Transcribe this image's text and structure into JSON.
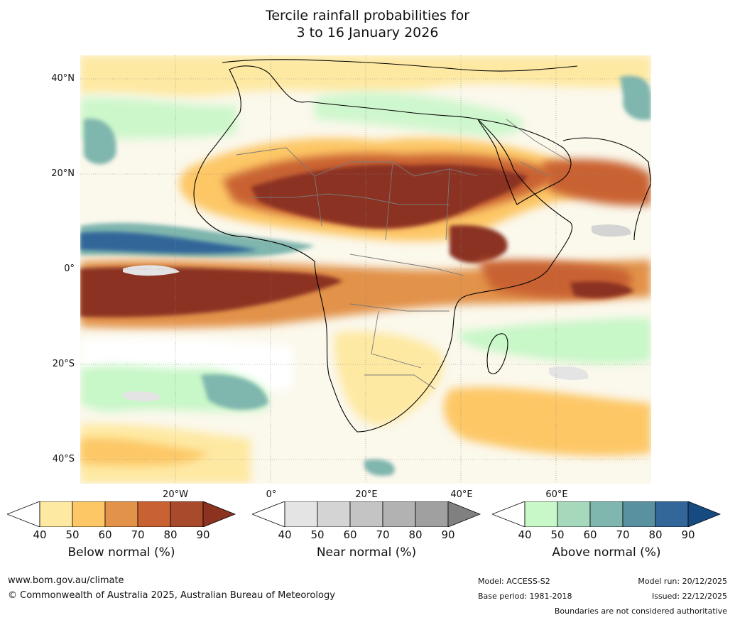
{
  "title": {
    "line1": "Tercile rainfall probabilities for",
    "line2": "3 to 16 January 2026"
  },
  "map": {
    "lat_labels": [
      "40°N",
      "20°N",
      "0°",
      "20°S",
      "40°S"
    ],
    "lon_labels": [
      "20°W",
      "0°",
      "20°E",
      "40°E",
      "60°E"
    ]
  },
  "legend": {
    "below": {
      "title": "Below normal (%)",
      "ticks": [
        "40",
        "50",
        "60",
        "70",
        "80",
        "90"
      ],
      "colors": [
        "#ffffff",
        "#fee9a3",
        "#fdc766",
        "#e29249",
        "#c96233",
        "#a84a2c",
        "#8b3220"
      ]
    },
    "near": {
      "title": "Near normal (%)",
      "ticks": [
        "40",
        "50",
        "60",
        "70",
        "80",
        "90"
      ],
      "colors": [
        "#ffffff",
        "#e4e4e4",
        "#d4d4d4",
        "#c4c4c4",
        "#b2b2b2",
        "#a0a0a0",
        "#808080"
      ]
    },
    "above": {
      "title": "Above normal (%)",
      "ticks": [
        "40",
        "50",
        "60",
        "70",
        "80",
        "90"
      ],
      "colors": [
        "#ffffff",
        "#c8f7c8",
        "#a6d8bc",
        "#7fb6ae",
        "#5a91a0",
        "#336699",
        "#174a80"
      ]
    }
  },
  "footer": {
    "website": "www.bom.gov.au/climate",
    "copyright": "© Commonwealth of Australia 2025, Australian Bureau of Meteorology",
    "model": "Model: ACCESS-S2",
    "base_period": "Base period: 1981-2018",
    "model_run": "Model run: 20/12/2025",
    "issued": "Issued: 22/12/2025",
    "boundaries_note": "Boundaries are not considered authoritative"
  }
}
